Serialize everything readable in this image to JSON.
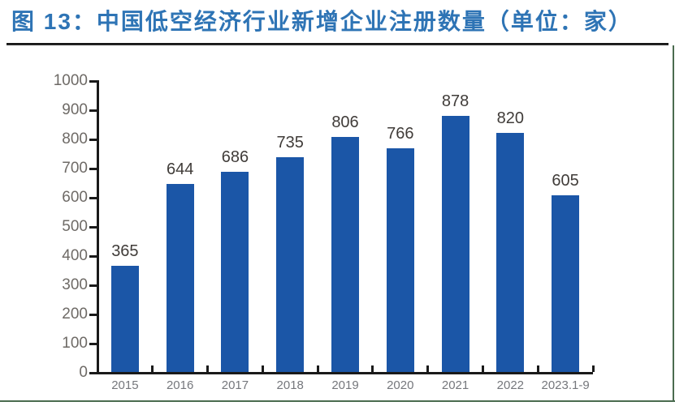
{
  "figure": {
    "title": "图 13：中国低空经济行业新增企业注册数量（单位：家）"
  },
  "chart_data": {
    "type": "bar",
    "title": "中国低空经济行业新增企业注册数量",
    "unit_label": "单位：家",
    "categories": [
      "2015",
      "2016",
      "2017",
      "2018",
      "2019",
      "2020",
      "2021",
      "2022",
      "2023.1-9"
    ],
    "values": [
      365,
      644,
      686,
      735,
      806,
      766,
      878,
      820,
      605
    ],
    "ylim": [
      0,
      1000
    ],
    "ytick_step": 100,
    "ytick_labels": [
      "0",
      "100",
      "200",
      "300",
      "400",
      "500",
      "600",
      "700",
      "800",
      "900",
      "1000"
    ],
    "bar_color": "#1B56A7",
    "axis_color": "#1a1a1a",
    "grid": false,
    "legend_position": "none",
    "value_labels_shown": true
  },
  "colors": {
    "title_blue": "#2E74B5",
    "table_border_green": "#4a6b4f",
    "bar_blue": "#1B56A7"
  }
}
